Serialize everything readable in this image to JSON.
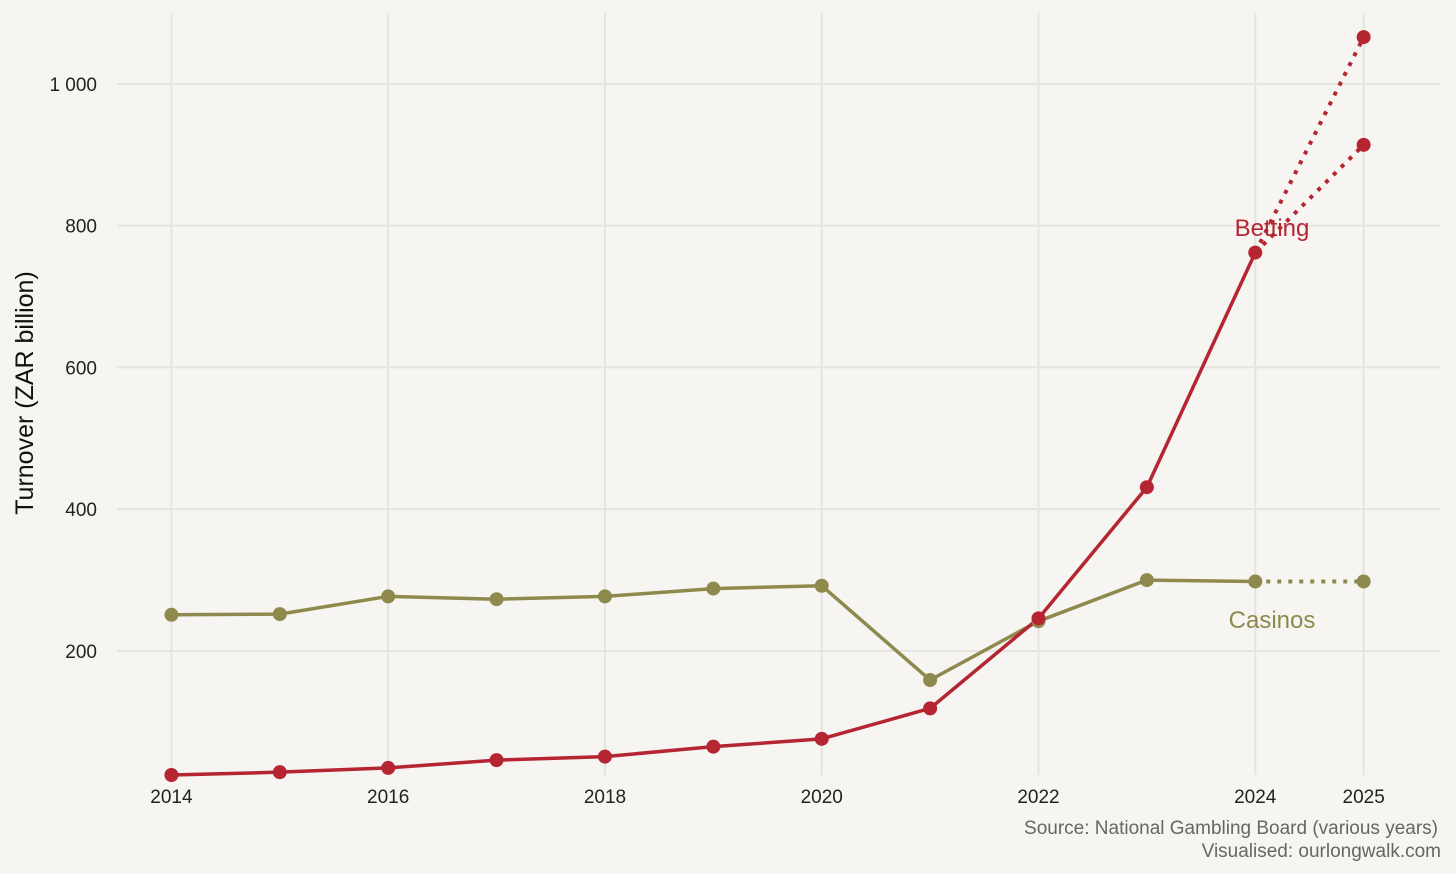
{
  "chart_data": {
    "type": "line",
    "title": "",
    "xlabel": "",
    "ylabel": "Turnover (ZAR billion)",
    "x": [
      2014,
      2015,
      2016,
      2017,
      2018,
      2019,
      2020,
      2021,
      2022,
      2023,
      2024
    ],
    "xlim": [
      2013.95,
      2025.4
    ],
    "ylim": [
      25,
      1100
    ],
    "x_ticks": [
      "2014",
      "2016",
      "2018",
      "2020",
      "2022",
      "2024",
      "2025"
    ],
    "x_tick_values": [
      2014,
      2016,
      2018,
      2020,
      2022,
      2024,
      2025
    ],
    "y_ticks": [
      "200",
      "400",
      "600",
      "800",
      "1 000"
    ],
    "y_tick_values": [
      200,
      400,
      600,
      800,
      1000
    ],
    "grid": true,
    "legend": "none (direct labels)",
    "series": [
      {
        "name": "Betting",
        "color": "#b52532",
        "values": [
          25,
          29,
          35,
          46,
          51,
          65,
          76,
          119,
          246,
          431,
          762
        ],
        "projection": [
          {
            "x": [
              2024,
              2025
            ],
            "values": [
              762,
              1066
            ]
          },
          {
            "x": [
              2024,
              2025
            ],
            "values": [
              762,
              914
            ]
          }
        ]
      },
      {
        "name": "Casinos",
        "color": "#8e8a4d",
        "values": [
          251,
          252,
          277,
          273,
          277,
          288,
          292,
          159,
          242,
          300,
          298
        ],
        "projection": [
          {
            "x": [
              2024,
              2025
            ],
            "values": [
              298,
              298
            ]
          }
        ]
      }
    ],
    "caption": [
      "Source: National Gambling Board (various years)",
      "Visualised: ourlongwalk.com"
    ]
  }
}
